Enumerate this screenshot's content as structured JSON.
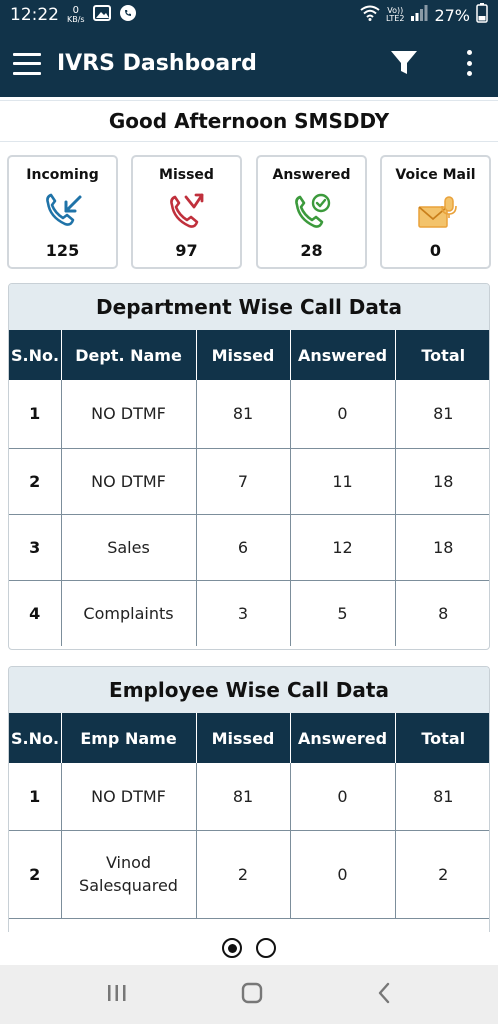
{
  "status_bar": {
    "time": "12:22",
    "speed_value": "0",
    "speed_unit": "KB/s",
    "network_label_top": "Vo))",
    "network_label_bottom": "LTE2",
    "battery": "27%",
    "icons": [
      "image-icon",
      "whatsapp-icon",
      "wifi-icon",
      "signal-icon",
      "battery-icon"
    ]
  },
  "app_bar": {
    "title": "IVRS Dashboard",
    "icons": [
      "menu-icon",
      "filter-icon",
      "more-vert-icon"
    ]
  },
  "greeting": "Good Afternoon SMSDDY",
  "summary_cards": [
    {
      "label": "Incoming",
      "count": "125",
      "icon": "incoming-call-icon",
      "color": "#1f73a8"
    },
    {
      "label": "Missed",
      "count": "97",
      "icon": "missed-call-icon",
      "color": "#c0303c"
    },
    {
      "label": "Answered",
      "count": "28",
      "icon": "answered-call-icon",
      "color": "#3c9a3c"
    },
    {
      "label": "Voice Mail",
      "count": "0",
      "icon": "voicemail-icon",
      "color": "#e9a23b"
    }
  ],
  "department_table": {
    "title": "Department Wise Call Data",
    "headers": [
      "S.No.",
      "Dept. Name",
      "Missed",
      "Answered",
      "Total"
    ],
    "rows": [
      [
        "1",
        "NO DTMF",
        "81",
        "0",
        "81"
      ],
      [
        "2",
        "NO DTMF",
        "7",
        "11",
        "18"
      ],
      [
        "3",
        "Sales",
        "6",
        "12",
        "18"
      ],
      [
        "4",
        "Complaints",
        "3",
        "5",
        "8"
      ]
    ]
  },
  "employee_table": {
    "title": "Employee Wise Call Data",
    "headers": [
      "S.No.",
      "Emp Name",
      "Missed",
      "Answered",
      "Total"
    ],
    "rows": [
      [
        "1",
        "NO DTMF",
        "81",
        "0",
        "81"
      ],
      [
        "2",
        "Vinod Salesquared",
        "2",
        "0",
        "2"
      ]
    ]
  },
  "pager": {
    "pages": 2,
    "current": 1
  },
  "colors": {
    "primary": "#113349",
    "section_header_bg": "#e3ebf0"
  }
}
